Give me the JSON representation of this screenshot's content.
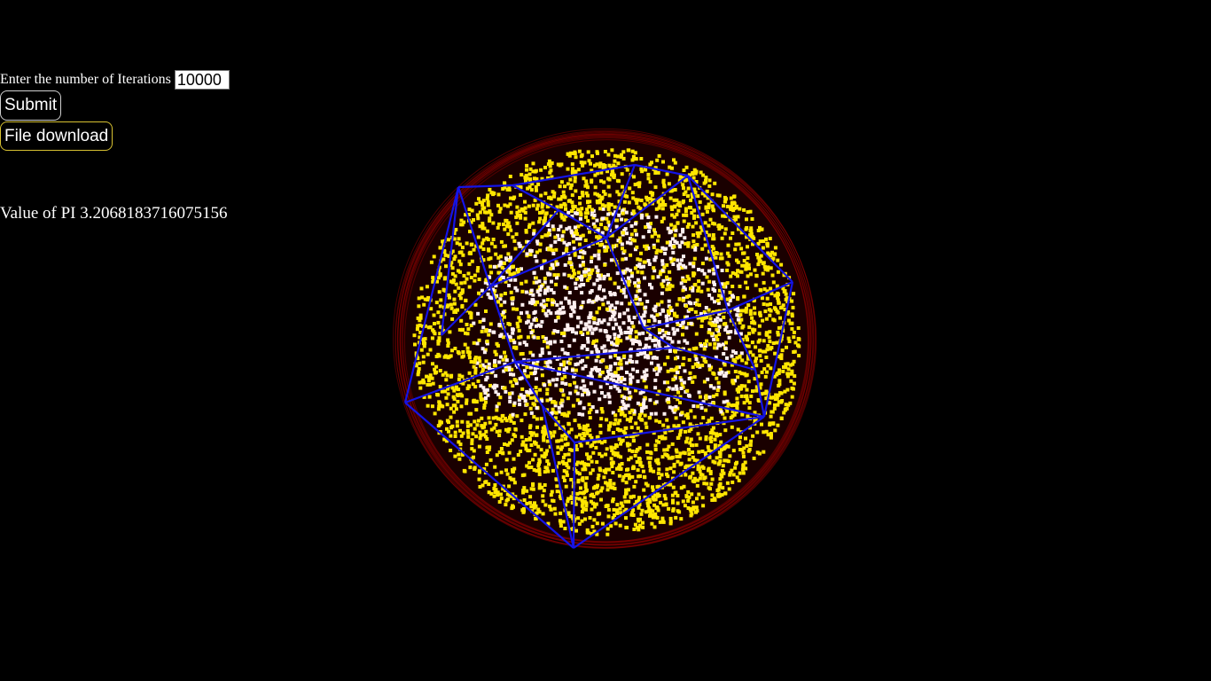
{
  "form": {
    "iterations_label": "Enter the number of Iterations",
    "iterations_value": "10000",
    "submit_label": "Submit",
    "download_label": "File download"
  },
  "result": {
    "label": "Value of PI",
    "value": "3.2068183716075156"
  },
  "visualization": {
    "colors": {
      "background": "#000000",
      "sphere_outline": "#8b0000",
      "inside_points": "#ffe600",
      "center_points": "#fff0f0",
      "polyhedron_edges": "#1414e6"
    }
  }
}
